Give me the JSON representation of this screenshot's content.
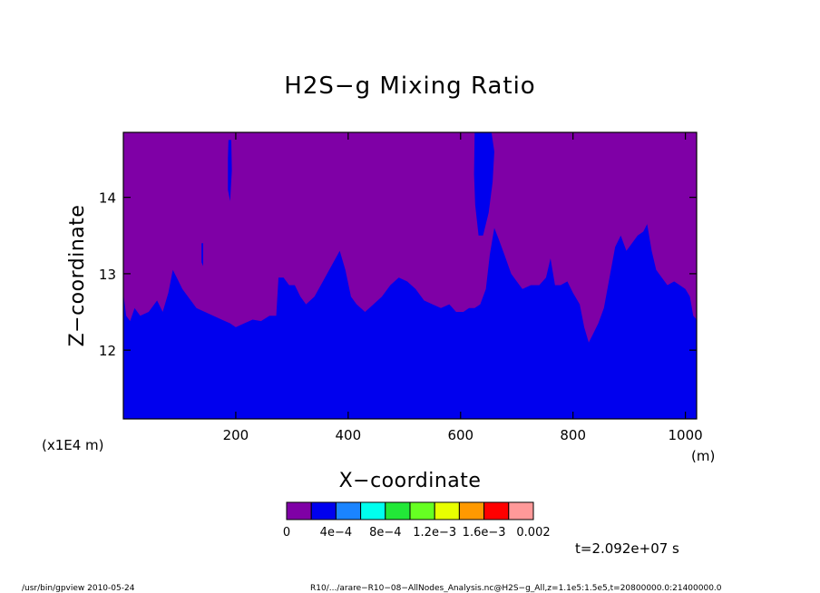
{
  "chart_data": {
    "type": "heatmap",
    "title": "H2S−g Mixing Ratio",
    "xlabel": "X−coordinate",
    "ylabel": "Z−coordinate",
    "x_unit": "(m)",
    "y_unit": "(x1E4 m)",
    "xlim": [
      0,
      1020
    ],
    "ylim": [
      11.1,
      14.85
    ],
    "x_ticks": [
      200,
      400,
      600,
      800,
      1000
    ],
    "y_ticks": [
      12,
      13,
      14
    ],
    "colors": {
      "purple": "#7f00a6",
      "blue": "#0000ee",
      "axis": "#000000"
    },
    "colorbar": {
      "colors": [
        "#7f00a6",
        "#0000ee",
        "#1a84ff",
        "#00ffee",
        "#22e838",
        "#66ff22",
        "#e8ff00",
        "#ff9900",
        "#ff0000",
        "#ff9999"
      ],
      "labels": [
        "0",
        "4e−4",
        "8e−4",
        "1.2e−3",
        "1.6e−3",
        "0.002"
      ]
    },
    "boundary": [
      [
        0,
        12.75
      ],
      [
        5,
        12.45
      ],
      [
        12,
        12.38
      ],
      [
        20,
        12.55
      ],
      [
        30,
        12.45
      ],
      [
        45,
        12.5
      ],
      [
        60,
        12.65
      ],
      [
        70,
        12.5
      ],
      [
        80,
        12.75
      ],
      [
        88,
        13.05
      ],
      [
        95,
        12.95
      ],
      [
        105,
        12.8
      ],
      [
        115,
        12.7
      ],
      [
        130,
        12.55
      ],
      [
        145,
        12.5
      ],
      [
        160,
        12.45
      ],
      [
        175,
        12.4
      ],
      [
        190,
        12.35
      ],
      [
        200,
        12.3
      ],
      [
        215,
        12.35
      ],
      [
        230,
        12.4
      ],
      [
        245,
        12.38
      ],
      [
        260,
        12.45
      ],
      [
        272,
        12.45
      ],
      [
        276,
        12.95
      ],
      [
        285,
        12.95
      ],
      [
        295,
        12.85
      ],
      [
        305,
        12.85
      ],
      [
        315,
        12.7
      ],
      [
        325,
        12.6
      ],
      [
        340,
        12.7
      ],
      [
        355,
        12.9
      ],
      [
        370,
        13.1
      ],
      [
        385,
        13.3
      ],
      [
        395,
        13.05
      ],
      [
        405,
        12.7
      ],
      [
        415,
        12.6
      ],
      [
        430,
        12.5
      ],
      [
        445,
        12.6
      ],
      [
        460,
        12.7
      ],
      [
        475,
        12.85
      ],
      [
        490,
        12.95
      ],
      [
        505,
        12.9
      ],
      [
        520,
        12.8
      ],
      [
        535,
        12.65
      ],
      [
        550,
        12.6
      ],
      [
        565,
        12.55
      ],
      [
        580,
        12.6
      ],
      [
        592,
        12.5
      ],
      [
        605,
        12.5
      ],
      [
        615,
        12.55
      ],
      [
        625,
        12.55
      ],
      [
        635,
        12.6
      ],
      [
        645,
        12.8
      ],
      [
        652,
        13.25
      ],
      [
        660,
        13.6
      ],
      [
        668,
        13.45
      ],
      [
        678,
        13.25
      ],
      [
        690,
        13.0
      ],
      [
        700,
        12.9
      ],
      [
        710,
        12.8
      ],
      [
        725,
        12.85
      ],
      [
        740,
        12.85
      ],
      [
        752,
        12.95
      ],
      [
        760,
        13.2
      ],
      [
        768,
        12.85
      ],
      [
        778,
        12.85
      ],
      [
        790,
        12.9
      ],
      [
        800,
        12.75
      ],
      [
        812,
        12.6
      ],
      [
        820,
        12.3
      ],
      [
        828,
        12.1
      ],
      [
        835,
        12.2
      ],
      [
        845,
        12.35
      ],
      [
        855,
        12.55
      ],
      [
        865,
        12.95
      ],
      [
        875,
        13.35
      ],
      [
        885,
        13.5
      ],
      [
        895,
        13.3
      ],
      [
        905,
        13.4
      ],
      [
        915,
        13.5
      ],
      [
        925,
        13.55
      ],
      [
        932,
        13.65
      ],
      [
        940,
        13.3
      ],
      [
        948,
        13.05
      ],
      [
        958,
        12.95
      ],
      [
        968,
        12.85
      ],
      [
        980,
        12.9
      ],
      [
        990,
        12.85
      ],
      [
        1000,
        12.8
      ],
      [
        1008,
        12.7
      ],
      [
        1014,
        12.45
      ],
      [
        1020,
        12.4
      ]
    ],
    "intrusions": [
      {
        "points": [
          [
            625,
            14.85
          ],
          [
            632,
            14.85
          ],
          [
            640,
            14.85
          ],
          [
            647,
            14.85
          ],
          [
            655,
            14.85
          ],
          [
            660,
            14.6
          ],
          [
            657,
            14.2
          ],
          [
            650,
            13.8
          ],
          [
            640,
            13.5
          ],
          [
            632,
            13.5
          ],
          [
            626,
            13.9
          ],
          [
            624,
            14.3
          ]
        ]
      },
      {
        "points": [
          [
            187,
            14.75
          ],
          [
            192,
            14.75
          ],
          [
            193,
            14.35
          ],
          [
            190,
            13.95
          ],
          [
            186,
            14.1
          ],
          [
            186,
            14.5
          ]
        ]
      },
      {
        "points": [
          [
            139,
            13.4
          ],
          [
            142,
            13.4
          ],
          [
            142,
            13.1
          ],
          [
            139,
            13.15
          ]
        ]
      }
    ],
    "time_label": "t=2.092e+07 s"
  },
  "footer": {
    "left": "/usr/bin/gpview  2010-05-24",
    "right": "R10/.../arare−R10−08−AllNodes_Analysis.nc@H2S−g_All,z=1.1e5:1.5e5,t=20800000.0:21400000.0"
  }
}
